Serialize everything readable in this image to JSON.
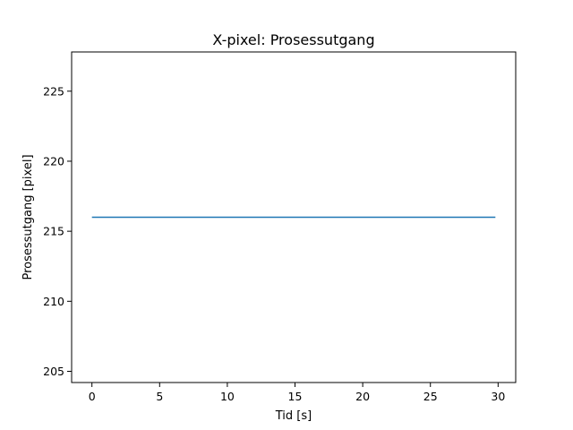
{
  "chart_data": {
    "type": "line",
    "title": "X-pixel: Prosessutgang",
    "xlabel": "Tid [s]",
    "ylabel": "Prosessutgang [pixel]",
    "xlim": [
      -1.5,
      31.3
    ],
    "ylim": [
      204.2,
      227.8
    ],
    "xticks": [
      0,
      5,
      10,
      15,
      20,
      25,
      30
    ],
    "yticks": [
      205,
      210,
      215,
      220,
      225
    ],
    "xtick_labels": [
      "0",
      "5",
      "10",
      "15",
      "20",
      "25",
      "30"
    ],
    "ytick_labels": [
      "205",
      "210",
      "215",
      "220",
      "225"
    ],
    "grid": false,
    "series": [
      {
        "color": "#1f77b4",
        "x": [
          0,
          29.8
        ],
        "y": [
          216,
          216
        ]
      }
    ]
  }
}
